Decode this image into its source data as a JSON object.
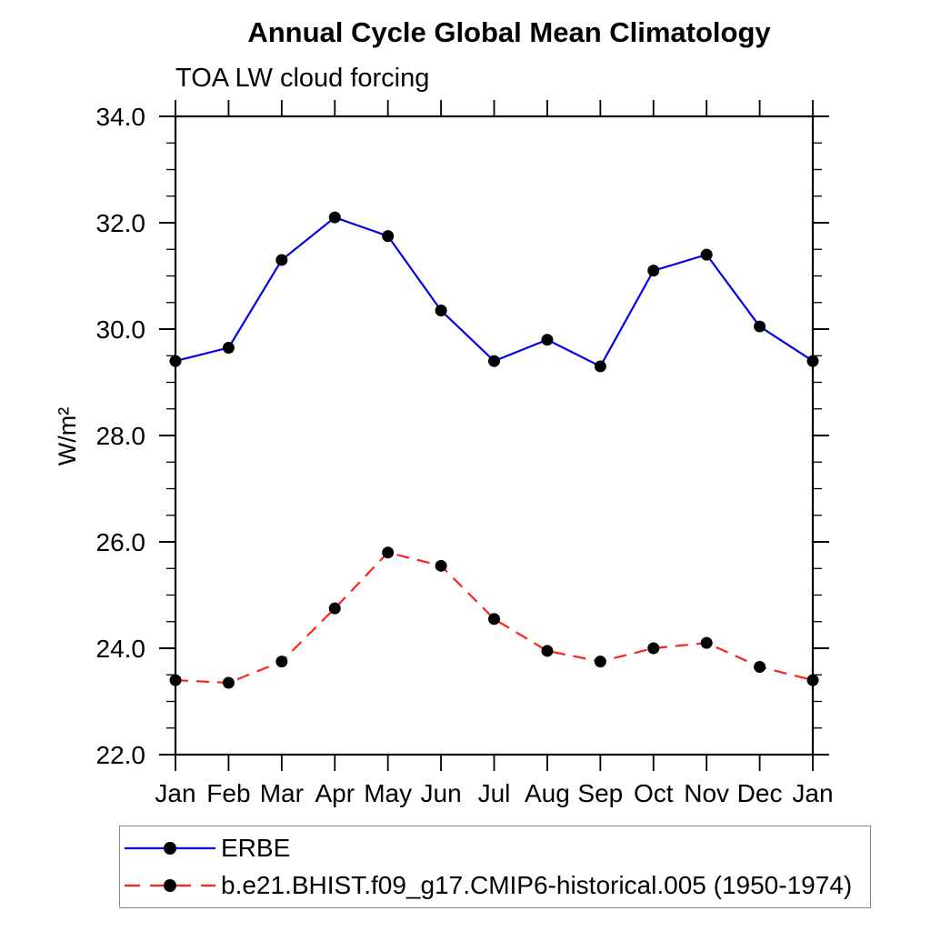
{
  "chart_data": {
    "type": "line",
    "title": "Annual Cycle Global Mean Climatology",
    "subtitle": "TOA LW cloud forcing",
    "ylabel": "W/m²",
    "xlabel": "",
    "ylim": [
      22.0,
      34.0
    ],
    "yticks": [
      22.0,
      24.0,
      26.0,
      28.0,
      30.0,
      32.0,
      34.0
    ],
    "ytick_major": 2.0,
    "ytick_minor": 0.5,
    "grid": false,
    "frame": "box-with-outward-ticks",
    "legend_position": "bottom",
    "categories": [
      "Jan",
      "Feb",
      "Mar",
      "Apr",
      "May",
      "Jun",
      "Jul",
      "Aug",
      "Sep",
      "Oct",
      "Nov",
      "Dec",
      "Jan"
    ],
    "series": [
      {
        "name": "ERBE",
        "color": "#0000ee",
        "line_style": "solid",
        "marker": "filled-circle",
        "marker_color": "#000000",
        "values": [
          29.4,
          29.65,
          31.3,
          32.1,
          31.75,
          30.35,
          29.4,
          29.8,
          29.3,
          31.1,
          31.4,
          30.05,
          29.4
        ]
      },
      {
        "name": "b.e21.BHIST.f09_g17.CMIP6-historical.005 (1950-1974)",
        "color": "#ff2020",
        "line_style": "dashed",
        "marker": "filled-circle",
        "marker_color": "#000000",
        "values": [
          23.4,
          23.35,
          23.75,
          24.75,
          25.8,
          25.55,
          24.55,
          23.95,
          23.75,
          24.0,
          24.1,
          23.65,
          23.4
        ]
      }
    ]
  }
}
